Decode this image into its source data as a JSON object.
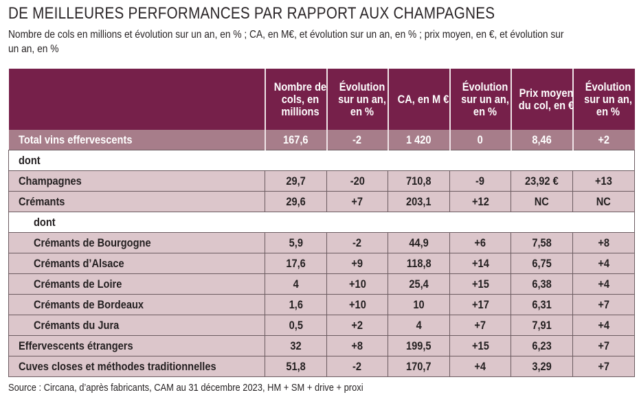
{
  "title": "DE MEILLEURES PERFORMANCES PAR RAPPORT AUX CHAMPAGNES",
  "subtitle": "Nombre de cols en millions et évolution sur un an, en % ; CA, en M€, et évolution sur un an, en % ; prix moyen, en €, et évolution sur un an, en %",
  "colors": {
    "header": "#76204a",
    "total_row": "#a77d8a",
    "row": "#dcc6cb"
  },
  "table": {
    "headers": [
      "",
      "Nombre de cols, en millions",
      "Évolution sur un an, en %",
      "CA, en M €",
      "Évolution sur un an, en %",
      "Prix moyen du col, en €",
      "Évolution sur un an, en %"
    ],
    "rows": [
      {
        "label": "Total vins effervescents",
        "values": [
          "167,6",
          "-2",
          "1 420",
          "0",
          "8,46",
          "+2"
        ]
      },
      {
        "label": "dont"
      },
      {
        "label": "Champagnes",
        "values": [
          "29,7",
          "-20",
          "710,8",
          "-9",
          "23,92 €",
          "+13"
        ]
      },
      {
        "label": "Crémants",
        "values": [
          "29,6",
          "+7",
          "203,1",
          "+12",
          "NC",
          "NC"
        ]
      },
      {
        "label": "dont"
      },
      {
        "label": "Crémants de Bourgogne",
        "values": [
          "5,9",
          "-2",
          "44,9",
          "+6",
          "7,58",
          "+8"
        ]
      },
      {
        "label": "Crémants d’Alsace",
        "values": [
          "17,6",
          "+9",
          "118,8",
          "+14",
          "6,75",
          "+4"
        ]
      },
      {
        "label": "Crémants de Loire",
        "values": [
          "4",
          "+10",
          "25,4",
          "+15",
          "6,38",
          "+4"
        ]
      },
      {
        "label": "Crémants de Bordeaux",
        "values": [
          "1,6",
          "+10",
          "10",
          "+17",
          "6,31",
          "+7"
        ]
      },
      {
        "label": "Crémants du Jura",
        "values": [
          "0,5",
          "+2",
          "4",
          "+7",
          "7,91",
          "+4"
        ]
      },
      {
        "label": "Effervescents étrangers",
        "values": [
          "32",
          "+8",
          "199,5",
          "+15",
          "6,23",
          "+7"
        ]
      },
      {
        "label": "Cuves closes et méthodes traditionnelles",
        "values": [
          "51,8",
          "-2",
          "170,7",
          "+4",
          "3,29",
          "+7"
        ]
      }
    ]
  },
  "source": "Source : Circana, d’après fabricants, CAM au 31 décembre 2023, HM + SM + drive + proxi"
}
